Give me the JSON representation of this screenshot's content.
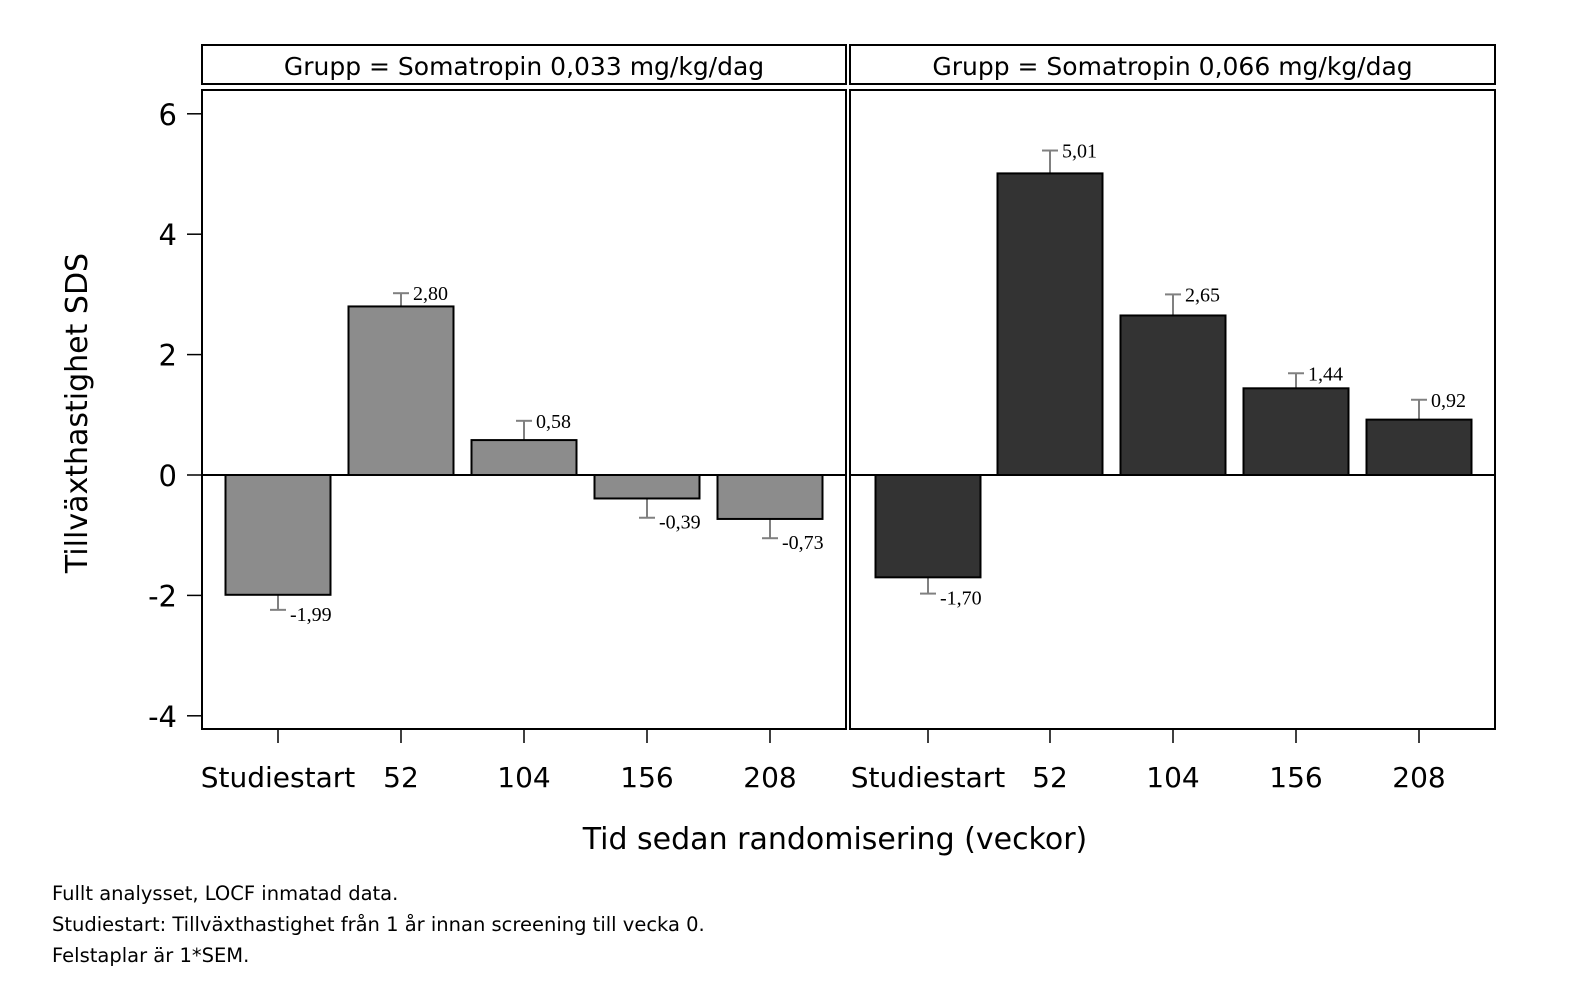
{
  "chart_data": {
    "type": "bar",
    "ylabel": "Tillväxthastighet SDS",
    "xlabel": "Tid sedan randomisering (veckor)",
    "ylim": [
      -4,
      6
    ],
    "yticks": [
      6,
      4,
      2,
      0,
      -2,
      -4
    ],
    "categories": [
      "Studiestart",
      "52",
      "104",
      "156",
      "208"
    ],
    "panels": [
      {
        "title": "Grupp = Somatropin 0,033 mg/kg/dag",
        "color": "#8c8c8c",
        "values": [
          -1.99,
          2.8,
          0.58,
          -0.39,
          -0.73
        ],
        "value_labels": [
          "-1,99",
          "2,80",
          "0,58",
          "-0,39",
          "-0,73"
        ],
        "sem": [
          0.25,
          0.22,
          0.32,
          0.32,
          0.32
        ]
      },
      {
        "title": "Grupp = Somatropin 0,066 mg/kg/dag",
        "color": "#333333",
        "values": [
          -1.7,
          5.01,
          2.65,
          1.44,
          0.92
        ],
        "value_labels": [
          "-1,70",
          "5,01",
          "2,65",
          "1,44",
          "0,92"
        ],
        "sem": [
          0.27,
          0.38,
          0.35,
          0.25,
          0.33
        ]
      }
    ]
  },
  "notes": [
    "Fullt analysset, LOCF inmatad data.",
    "Studiestart: Tillväxthastighet från 1 år innan screening till vecka 0.",
    "Felstaplar är 1*SEM."
  ]
}
